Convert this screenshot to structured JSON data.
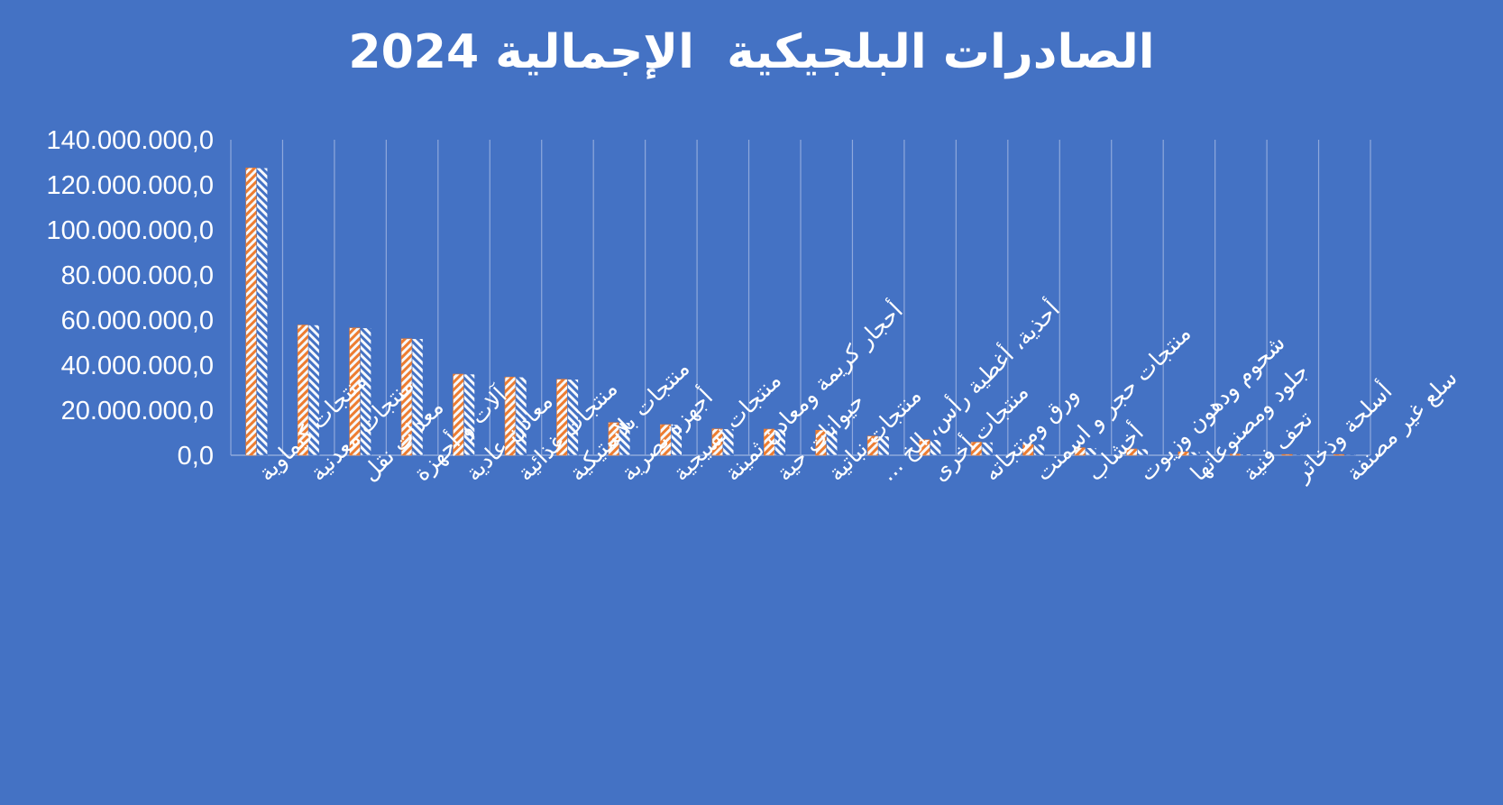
{
  "chart_data": {
    "type": "bar",
    "title": "الصادرات البلجيكية  الإجمالية 2024",
    "categories": [
      "منتجات كيماوية",
      "منتجات معدنية",
      "معدات نقل",
      "آلات و أجهزة",
      "معادن عادية",
      "منتجات غذائية",
      "منتجات بلاستيكية",
      "أجهزة بصرية",
      "منتجات نسيجية",
      "أحجار كريمة ومعادن ثمينة",
      "حيوانات حية",
      "منتجات نباتية",
      "أحذية، أغطية رأس، الخ ...",
      "منتجات أخرى",
      "ورق ومنتجاته",
      "منتجات حجر و اسمنت",
      "أخشاب",
      "شحوم ودهون وزيوت",
      "جلود ومصنوعاتها",
      "تحف فنية",
      "أسلحة وذخائر",
      "سلع غير مصنفة"
    ],
    "series": [
      {
        "color": "#ED7D31",
        "values": [
          127500000,
          57800000,
          56500000,
          51700000,
          36000000,
          34700000,
          33700000,
          14500000,
          13600000,
          11700000,
          11600000,
          11100000,
          8500000,
          6900000,
          5800000,
          4800000,
          3300000,
          2800000,
          1500000,
          500000,
          350000,
          150000
        ]
      },
      {
        "color": "#A5B8DC",
        "values": [
          127500000,
          57800000,
          56500000,
          51700000,
          36000000,
          34700000,
          33700000,
          14500000,
          13600000,
          11700000,
          11600000,
          11100000,
          8500000,
          6900000,
          5800000,
          4800000,
          3300000,
          2800000,
          1500000,
          500000,
          350000,
          150000
        ]
      }
    ],
    "y_ticks": [
      "0,0",
      "20.000.000,0",
      "40.000.000,0",
      "60.000.000,0",
      "80.000.000,0",
      "100.000.000,0",
      "120.000.000,0",
      "140.000.000,0"
    ],
    "ylim": [
      0,
      140000000
    ],
    "grid": "vertical",
    "legend": "none"
  },
  "colors": {
    "background": "#4472C4",
    "text": "#FFFFFF",
    "gridline": "#8FA9DC"
  }
}
